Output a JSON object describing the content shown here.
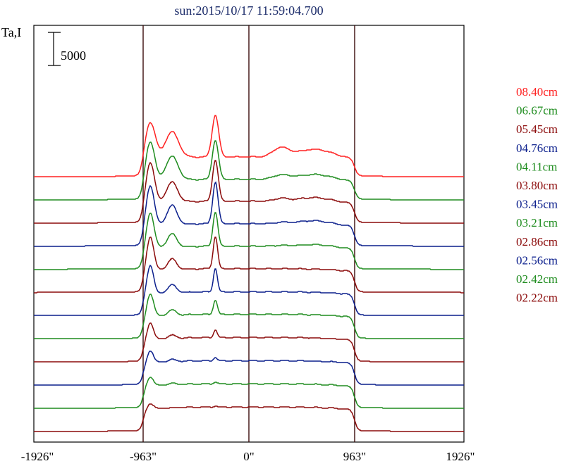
{
  "chart_data": {
    "type": "line",
    "title": "sun:2015/10/17 11:59:04.700",
    "ylabel": "Ta,I",
    "scale_bar_label": "5000",
    "scale_bar_value": 5000,
    "x_ticks": [
      {
        "value": -1926,
        "label": "-1926\""
      },
      {
        "value": -963,
        "label": "-963\""
      },
      {
        "value": 0,
        "label": "0\""
      },
      {
        "value": 963,
        "label": "963\""
      },
      {
        "value": 1926,
        "label": "1926\""
      }
    ],
    "xlim": [
      -1926,
      1926
    ],
    "vertical_lines": [
      -963,
      0,
      963
    ],
    "grid": false,
    "legend_position": "right",
    "series": [
      {
        "name": "08.40cm",
        "color": "#ff2020",
        "offset": 11,
        "profile": {
          "limb": 3000,
          "peaks": [
            [
              -898,
              5500,
              45
            ],
            [
              -700,
              3900,
              60
            ],
            [
              -305,
              6300,
              30
            ],
            [
              290,
              1300,
              70
            ],
            [
              600,
              1200,
              160
            ]
          ]
        }
      },
      {
        "name": "06.67cm",
        "color": "#1e8c1e",
        "offset": 10,
        "profile": {
          "limb": 3100,
          "peaks": [
            [
              -898,
              6000,
              40
            ],
            [
              -700,
              3600,
              55
            ],
            [
              -305,
              5900,
              28
            ],
            [
              290,
              600,
              70
            ],
            [
              600,
              800,
              160
            ]
          ]
        }
      },
      {
        "name": "05.45cm",
        "color": "#8b0a0a",
        "offset": 9,
        "profile": {
          "limb": 3300,
          "peaks": [
            [
              -898,
              6200,
              38
            ],
            [
              -700,
              3000,
              50
            ],
            [
              -305,
              6200,
              26
            ],
            [
              290,
              400,
              60
            ],
            [
              600,
              600,
              150
            ]
          ]
        }
      },
      {
        "name": "04.76cm",
        "color": "#0a1e8c",
        "offset": 8,
        "profile": {
          "limb": 3400,
          "peaks": [
            [
              -898,
              6100,
              36
            ],
            [
              -700,
              2900,
              45
            ],
            [
              -305,
              6300,
              24
            ],
            [
              290,
              200,
              60
            ],
            [
              600,
              500,
              140
            ]
          ]
        }
      },
      {
        "name": "04.11cm",
        "color": "#1e8c1e",
        "offset": 7,
        "profile": {
          "limb": 3500,
          "peaks": [
            [
              -898,
              5400,
              34
            ],
            [
              -700,
              2000,
              42
            ],
            [
              -305,
              5200,
              22
            ],
            [
              290,
              100,
              60
            ],
            [
              600,
              300,
              140
            ]
          ]
        }
      },
      {
        "name": "03.80cm",
        "color": "#8b0a0a",
        "offset": 6,
        "profile": {
          "limb": 3600,
          "peaks": [
            [
              -898,
              5200,
              32
            ],
            [
              -700,
              1600,
              40
            ],
            [
              -305,
              4900,
              20
            ]
          ]
        }
      },
      {
        "name": "03.45cm",
        "color": "#0a1e8c",
        "offset": 5,
        "profile": {
          "limb": 3600,
          "peaks": [
            [
              -898,
              4400,
              30
            ],
            [
              -700,
              1200,
              38
            ],
            [
              -305,
              3600,
              18
            ]
          ]
        }
      },
      {
        "name": "03.21cm",
        "color": "#1e8c1e",
        "offset": 4,
        "profile": {
          "limb": 3700,
          "peaks": [
            [
              -898,
              3500,
              30
            ],
            [
              -700,
              800,
              36
            ],
            [
              -305,
              2200,
              18
            ]
          ]
        }
      },
      {
        "name": "02.86cm",
        "color": "#8b0a0a",
        "offset": 3,
        "profile": {
          "limb": 3700,
          "peaks": [
            [
              -898,
              2600,
              28
            ],
            [
              -700,
              500,
              34
            ],
            [
              -305,
              1200,
              16
            ]
          ]
        }
      },
      {
        "name": "02.56cm",
        "color": "#0a1e8c",
        "offset": 2,
        "profile": {
          "limb": 3700,
          "peaks": [
            [
              -898,
              1900,
              28
            ],
            [
              -700,
              300,
              34
            ],
            [
              -305,
              500,
              16
            ]
          ]
        }
      },
      {
        "name": "02.42cm",
        "color": "#1e8c1e",
        "offset": 1,
        "profile": {
          "limb": 3700,
          "peaks": [
            [
              -898,
              1400,
              28
            ],
            [
              -700,
              200,
              34
            ],
            [
              -305,
              300,
              16
            ]
          ]
        }
      },
      {
        "name": "02.22cm",
        "color": "#8b0a0a",
        "offset": 0,
        "profile": {
          "limb": 3700,
          "peaks": [
            [
              -898,
              900,
              28
            ],
            [
              -305,
              150,
              16
            ]
          ]
        }
      }
    ],
    "offset_step": 3500
  }
}
